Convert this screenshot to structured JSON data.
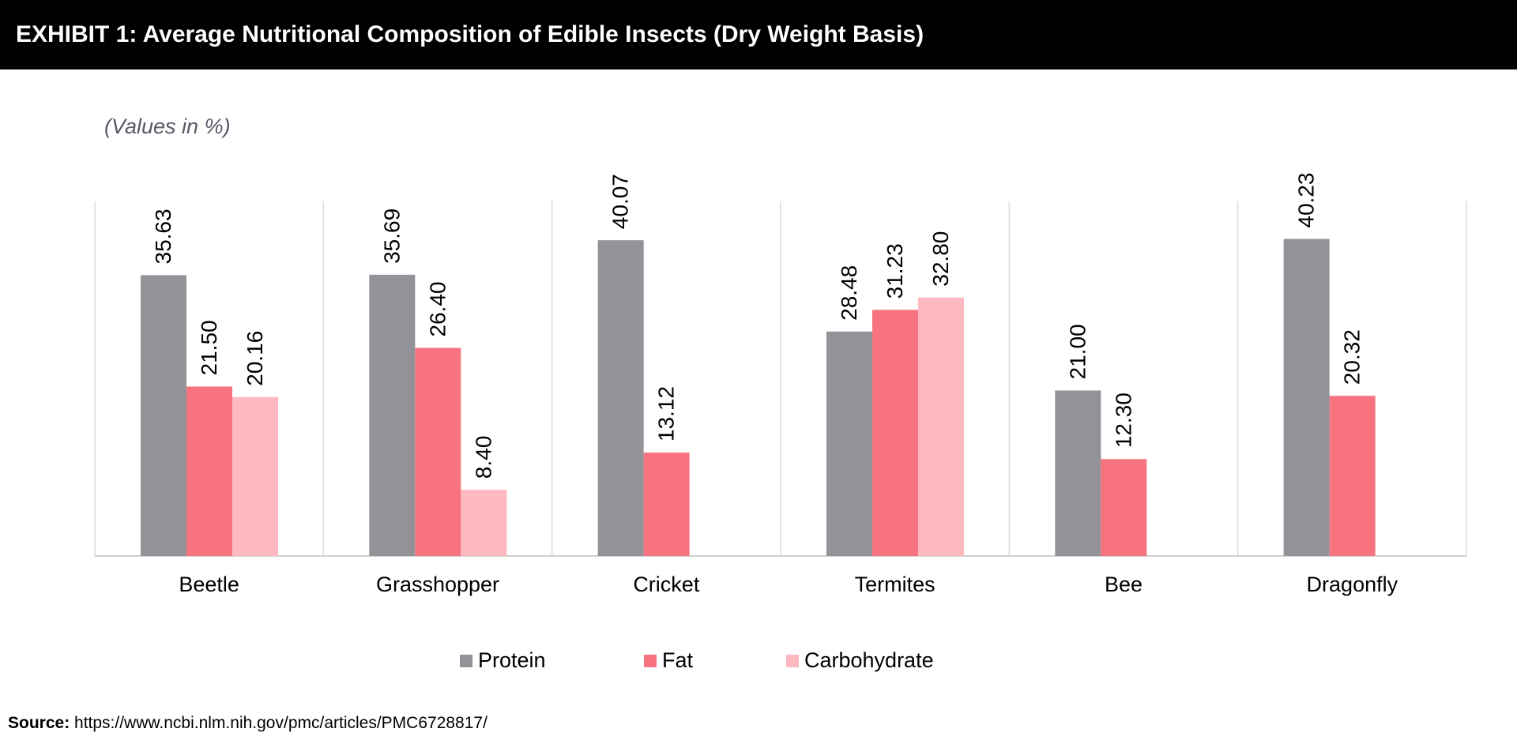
{
  "header": {
    "title": "EXHIBIT 1: Average Nutritional Composition of Edible Insects (Dry Weight Basis)"
  },
  "source": {
    "label": "Source:",
    "text": "https://www.ncbi.nlm.nih.gov/pmc/articles/PMC6728817/"
  },
  "chart_data": {
    "type": "bar",
    "subtitle": "(Values in %)",
    "categories": [
      "Beetle",
      "Grasshopper",
      "Cricket",
      "Termites",
      "Bee",
      "Dragonfly"
    ],
    "series": [
      {
        "name": "Protein",
        "color": "#939298",
        "values": [
          35.63,
          35.69,
          40.07,
          28.48,
          21.0,
          40.23
        ],
        "labels": [
          "35.63",
          "35.69",
          "40.07",
          "28.48",
          "21.00",
          "40.23"
        ]
      },
      {
        "name": "Fat",
        "color": "#f87380",
        "values": [
          21.5,
          26.4,
          13.12,
          31.23,
          12.3,
          20.32
        ],
        "labels": [
          "21.50",
          "26.40",
          "13.12",
          "31.23",
          "12.30",
          "20.32"
        ]
      },
      {
        "name": "Carbohydrate",
        "color": "#fdb9bf",
        "values": [
          20.16,
          8.4,
          null,
          32.8,
          null,
          null
        ],
        "labels": [
          "20.16",
          "8.40",
          null,
          "32.80",
          null,
          null
        ]
      }
    ],
    "ylim": [
      0,
      45
    ],
    "grid": "vertical category separators",
    "legend_position": "bottom"
  }
}
